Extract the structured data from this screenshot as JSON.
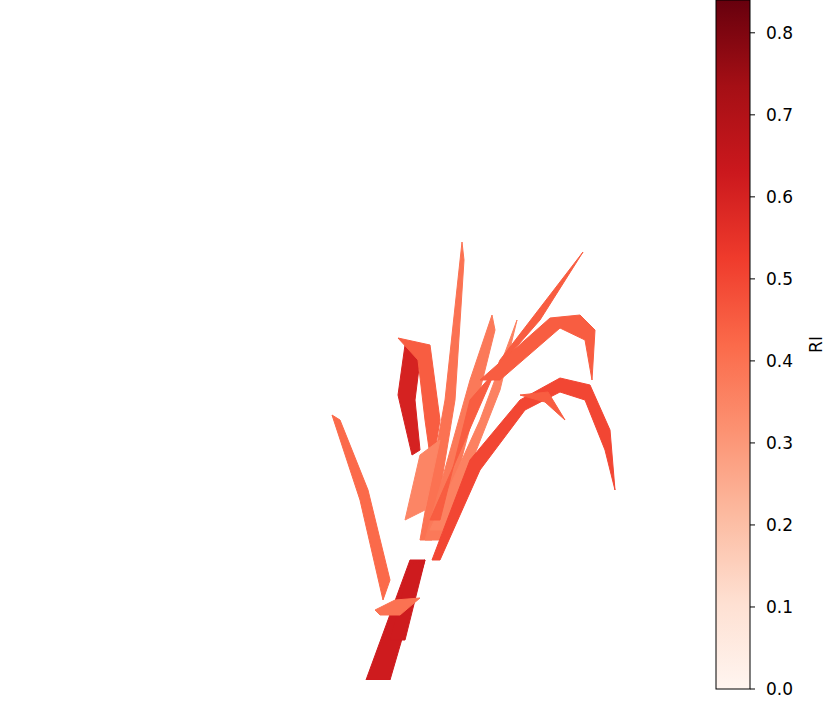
{
  "chart_data": {
    "type": "heatmap",
    "tick_labels": false,
    "xlim": [
      0,
      700
    ],
    "ylim": [
      680,
      0
    ],
    "regions": [
      {
        "x": [
          383,
          360,
          332,
          340,
          368,
          390
        ],
        "y": [
          600,
          500,
          415,
          420,
          490,
          580
        ],
        "value": 0.42
      },
      {
        "x": [
          405,
          398,
          412,
          420,
          415,
          420
        ],
        "y": [
          345,
          395,
          455,
          450,
          400,
          360
        ],
        "value": 0.6
      },
      {
        "x": [
          398,
          430,
          440,
          432,
          425,
          418
        ],
        "y": [
          338,
          345,
          420,
          470,
          420,
          360
        ],
        "value": 0.45
      },
      {
        "x": [
          420,
          445,
          462,
          464,
          455,
          432
        ],
        "y": [
          540,
          400,
          242,
          260,
          400,
          540
        ],
        "value": 0.4
      },
      {
        "x": [
          425,
          470,
          492,
          495,
          480,
          440
        ],
        "y": [
          540,
          380,
          315,
          330,
          390,
          540
        ],
        "value": 0.38
      },
      {
        "x": [
          430,
          480,
          517,
          500,
          445
        ],
        "y": [
          530,
          420,
          320,
          390,
          530
        ],
        "value": 0.36
      },
      {
        "x": [
          430,
          500,
          583,
          540,
          470,
          440
        ],
        "y": [
          520,
          360,
          252,
          320,
          400,
          520
        ],
        "value": 0.45
      },
      {
        "x": [
          480,
          550,
          580,
          595,
          592,
          585,
          560,
          500
        ],
        "y": [
          380,
          318,
          315,
          330,
          380,
          340,
          328,
          380
        ],
        "value": 0.45
      },
      {
        "x": [
          432,
          470,
          520,
          560,
          590,
          610,
          615,
          605,
          585,
          560,
          525,
          480,
          440
        ],
        "y": [
          560,
          460,
          400,
          378,
          385,
          430,
          490,
          450,
          400,
          392,
          410,
          470,
          560
        ],
        "value": 0.5
      },
      {
        "x": [
          520,
          548,
          565,
          545
        ],
        "y": [
          395,
          392,
          420,
          402
        ],
        "value": 0.45
      },
      {
        "x": [
          405,
          420,
          440,
          425
        ],
        "y": [
          520,
          455,
          440,
          510
        ],
        "value": 0.35
      },
      {
        "x": [
          366,
          390,
          425,
          410
        ],
        "y": [
          680,
          680,
          560,
          560
        ],
        "value": 0.62
      },
      {
        "x": [
          390,
          410,
          425,
          405
        ],
        "y": [
          640,
          565,
          560,
          640
        ],
        "value": 0.62
      },
      {
        "x": [
          375,
          395,
          420,
          400,
          380
        ],
        "y": [
          610,
          600,
          598,
          615,
          615
        ],
        "value": 0.4
      }
    ],
    "colorbar": {
      "label": "RI",
      "range": [
        0,
        0.84
      ],
      "ticks": [
        {
          "value": 0,
          "label": "0.0"
        },
        {
          "value": 0.1,
          "label": "0.1"
        },
        {
          "value": 0.2,
          "label": "0.2"
        },
        {
          "value": 0.3,
          "label": "0.3"
        },
        {
          "value": 0.4,
          "label": "0.4"
        },
        {
          "value": 0.5,
          "label": "0.5"
        },
        {
          "value": 0.6,
          "label": "0.6"
        },
        {
          "value": 0.7,
          "label": "0.7"
        },
        {
          "value": 0.8,
          "label": "0.8"
        }
      ]
    }
  }
}
